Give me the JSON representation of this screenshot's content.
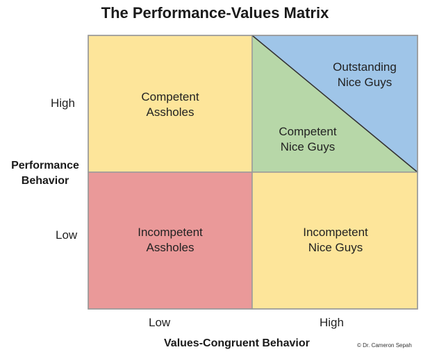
{
  "title": "The Performance-Values Matrix",
  "y_axis": {
    "title_line1": "Performance",
    "title_line2": "Behavior",
    "ticks": [
      "High",
      "Low"
    ]
  },
  "x_axis": {
    "title": "Values-Congruent Behavior",
    "ticks": [
      "Low",
      "High"
    ]
  },
  "quadrants": {
    "top_left": {
      "line1": "Competent",
      "line2": "Assholes",
      "color": "#fde59a"
    },
    "top_right_lower": {
      "line1": "Competent",
      "line2": "Nice Guys",
      "color": "#b7d7a8"
    },
    "top_right_upper": {
      "line1": "Outstanding",
      "line2": "Nice Guys",
      "color": "#9fc5e8"
    },
    "bottom_left": {
      "line1": "Incompetent",
      "line2": "Assholes",
      "color": "#ea9999"
    },
    "bottom_right": {
      "line1": "Incompetent",
      "line2": "Nice Guys",
      "color": "#fde59a"
    }
  },
  "credit": "© Dr. Cameron Sepah"
}
